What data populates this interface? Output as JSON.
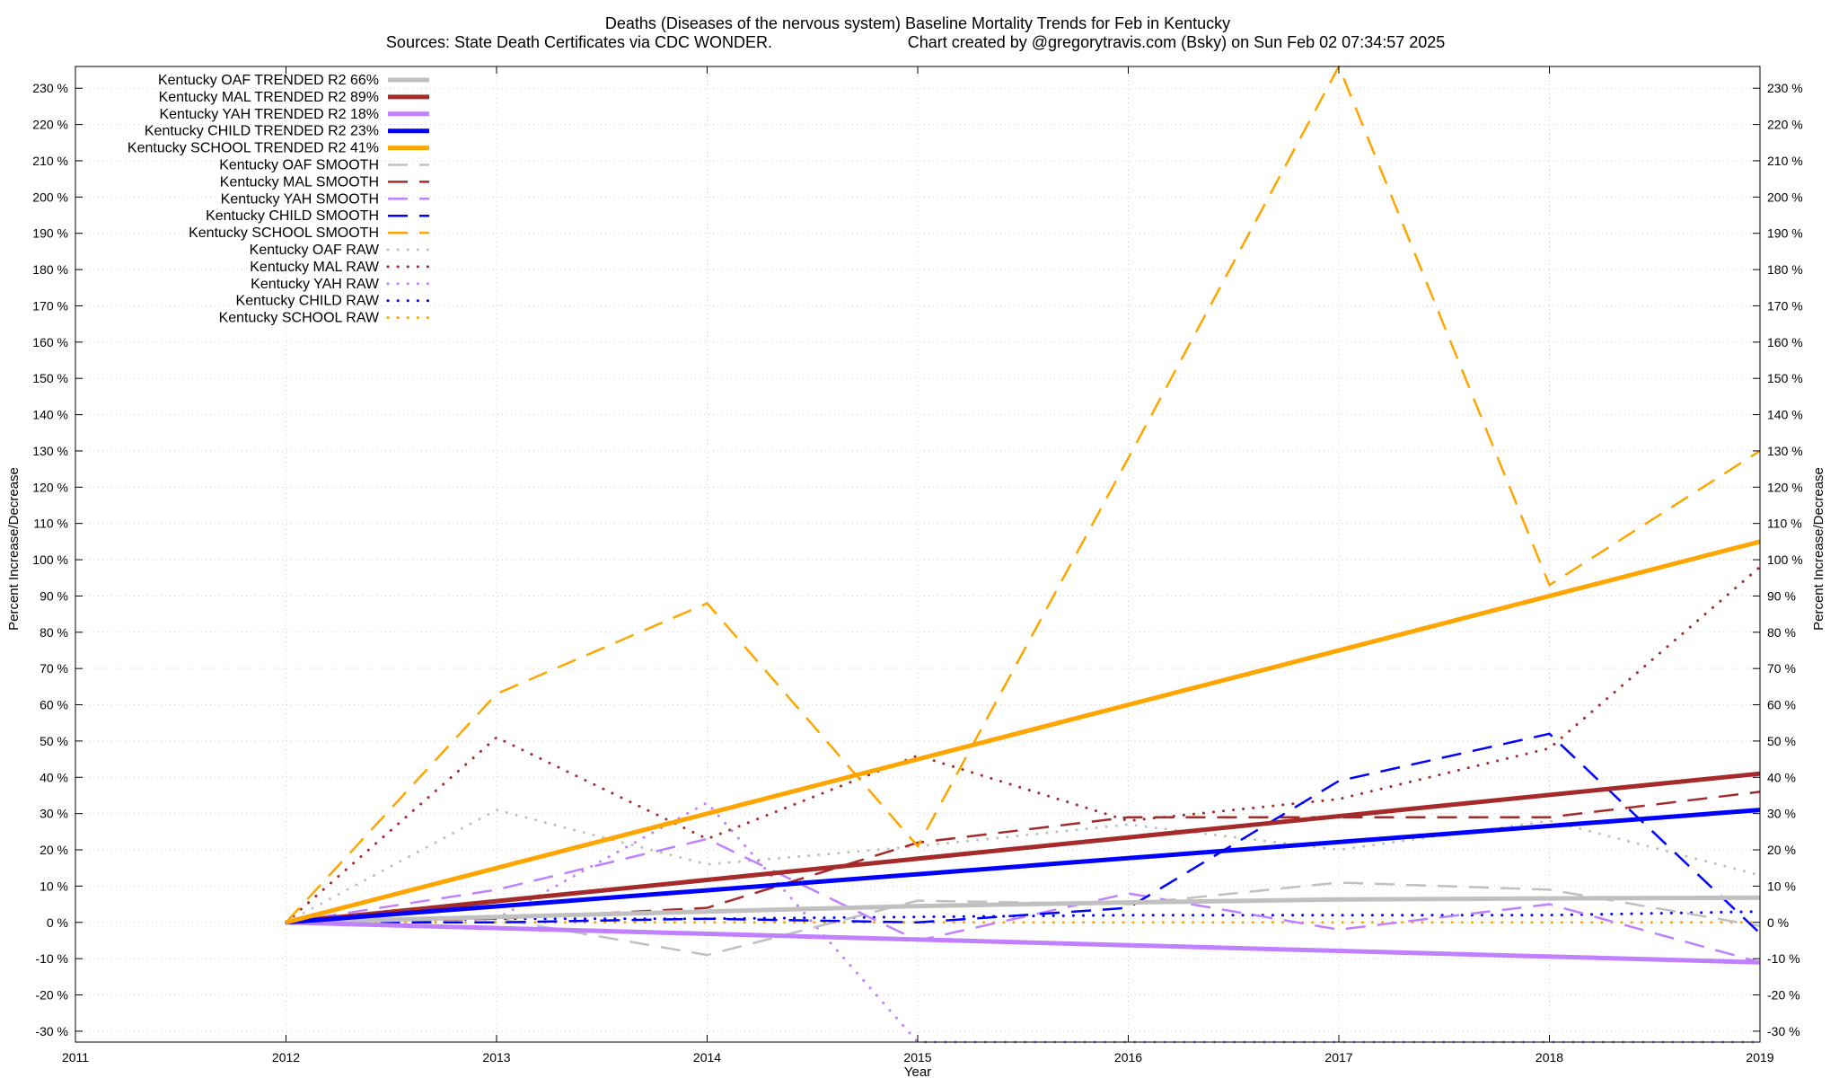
{
  "chart_data": {
    "type": "line",
    "title": "Deaths (Diseases of the nervous system)  Baseline Mortality Trends for Feb in Kentucky",
    "subtitle_left": "Sources: State Death Certificates via CDC WONDER.",
    "subtitle_right": "Chart created by @gregorytravis.com (Bsky) on Sun Feb 02 07:34:57 2025",
    "xlabel": "Year",
    "ylabel": "Percent Increase/Decrease",
    "xlim": [
      2011,
      2019
    ],
    "ylim": [
      -33,
      236
    ],
    "x_ticks": [
      "2011",
      "2012",
      "2013",
      "2014",
      "2015",
      "2016",
      "2017",
      "2018",
      "2019"
    ],
    "y_tick_values": [
      -30,
      -20,
      -10,
      0,
      10,
      20,
      30,
      40,
      50,
      60,
      70,
      80,
      90,
      100,
      110,
      120,
      130,
      140,
      150,
      160,
      170,
      180,
      190,
      200,
      210,
      220,
      230
    ],
    "y_tick_labels": [
      "-30 %",
      "-20 %",
      "-10 %",
      "0 %",
      "10 %",
      "20 %",
      "30 %",
      "40 %",
      "50 %",
      "60 %",
      "70 %",
      "80 %",
      "90 %",
      "100 %",
      "110 %",
      "120 %",
      "130 %",
      "140 %",
      "150 %",
      "160 %",
      "170 %",
      "180 %",
      "190 %",
      "200 %",
      "210 %",
      "220 %",
      "230 %"
    ],
    "grid": true,
    "legend_placement": "top-left",
    "series": [
      {
        "name": "Kentucky OAF TRENDED R2  66%",
        "style": "solid",
        "color": "#c0c0c0",
        "x": [
          2012,
          2013,
          2014,
          2015,
          2016,
          2017,
          2018,
          2019
        ],
        "values": [
          0,
          1.5,
          3,
          4.5,
          5.5,
          6.3,
          6.6,
          6.8
        ]
      },
      {
        "name": "Kentucky MAL TRENDED R2  89%",
        "style": "solid",
        "color": "#a52a2a",
        "x": [
          2012,
          2019
        ],
        "values": [
          0,
          41
        ]
      },
      {
        "name": "Kentucky YAH TRENDED R2  18%",
        "style": "solid",
        "color": "#c080ff",
        "x": [
          2012,
          2019
        ],
        "values": [
          0,
          -11
        ]
      },
      {
        "name": "Kentucky CHILD TRENDED R2  23%",
        "style": "solid",
        "color": "#0000ff",
        "x": [
          2012,
          2019
        ],
        "values": [
          0,
          31
        ]
      },
      {
        "name": "Kentucky SCHOOL TRENDED R2  41%",
        "style": "solid",
        "color": "#ffa500",
        "x": [
          2012,
          2019
        ],
        "values": [
          0,
          105
        ]
      },
      {
        "name": "Kentucky OAF SMOOTH",
        "style": "dashed",
        "color": "#c0c0c0",
        "x": [
          2012,
          2013,
          2014,
          2015,
          2016,
          2017,
          2018,
          2019
        ],
        "values": [
          0,
          1,
          -9,
          6,
          5,
          11,
          9,
          -1
        ]
      },
      {
        "name": "Kentucky MAL SMOOTH",
        "style": "dashed",
        "color": "#a52a2a",
        "x": [
          2012,
          2013,
          2014,
          2015,
          2016,
          2017,
          2018,
          2019
        ],
        "values": [
          0,
          1,
          4,
          22,
          29,
          29,
          29,
          36
        ]
      },
      {
        "name": "Kentucky YAH SMOOTH",
        "style": "dashed",
        "color": "#c080ff",
        "x": [
          2012,
          2013,
          2014,
          2015,
          2016,
          2017,
          2018,
          2019
        ],
        "values": [
          0,
          9,
          23,
          -5,
          8,
          -2,
          5,
          -11
        ]
      },
      {
        "name": "Kentucky CHILD SMOOTH",
        "style": "dashed",
        "color": "#0000ff",
        "x": [
          2012,
          2013,
          2014,
          2015,
          2016,
          2017,
          2018,
          2019
        ],
        "values": [
          0,
          0,
          1,
          0,
          4,
          39,
          52,
          -3
        ]
      },
      {
        "name": "Kentucky SCHOOL SMOOTH",
        "style": "dashed",
        "color": "#ffa500",
        "x": [
          2012,
          2013,
          2014,
          2015,
          2016,
          2017,
          2018,
          2019
        ],
        "values": [
          0,
          63,
          88,
          21,
          128,
          236,
          93,
          130
        ]
      },
      {
        "name": "Kentucky OAF RAW",
        "style": "dotted",
        "color": "#c0c0c0",
        "x": [
          2012,
          2013,
          2014,
          2015,
          2016,
          2017,
          2018,
          2019
        ],
        "values": [
          0,
          31,
          16,
          21,
          27,
          20,
          28,
          13
        ]
      },
      {
        "name": "Kentucky MAL RAW",
        "style": "dotted",
        "color": "#a52a2a",
        "x": [
          2012,
          2013,
          2014,
          2015,
          2016,
          2017,
          2018,
          2019
        ],
        "values": [
          0,
          51,
          23,
          46,
          28,
          34,
          48,
          98
        ]
      },
      {
        "name": "Kentucky YAH RAW",
        "style": "dotted",
        "color": "#c080ff",
        "x": [
          2012,
          2013,
          2014,
          2015,
          2016,
          2017,
          2018,
          2019
        ],
        "values": [
          0,
          1,
          33,
          -33,
          -33,
          -33,
          -33,
          -33
        ]
      },
      {
        "name": "Kentucky CHILD RAW",
        "style": "dotted",
        "color": "#0000ff",
        "x": [
          2012,
          2013,
          2014,
          2015,
          2016,
          2017,
          2018,
          2019
        ],
        "values": [
          0,
          1,
          1,
          1.5,
          2,
          2,
          2,
          3
        ]
      },
      {
        "name": "Kentucky SCHOOL RAW",
        "style": "dotted",
        "color": "#ffa500",
        "x": [
          2012,
          2013,
          2014,
          2015,
          2016,
          2017,
          2018,
          2019
        ],
        "values": [
          0,
          0,
          0,
          0,
          0,
          0,
          0,
          0
        ]
      }
    ]
  }
}
